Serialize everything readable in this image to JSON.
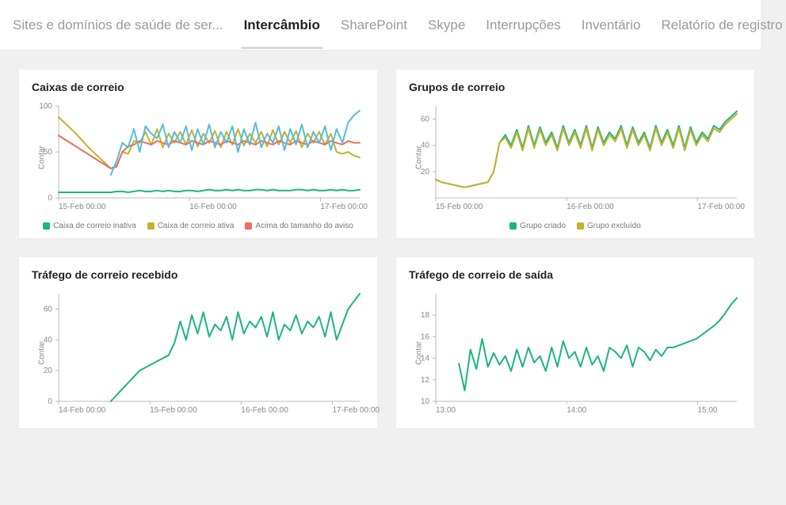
{
  "tabs": [
    {
      "label": "Sites e domínios de saúde de ser...",
      "active": false
    },
    {
      "label": "Intercâmbio",
      "active": true
    },
    {
      "label": "SharePoint",
      "active": false
    },
    {
      "label": "Skype",
      "active": false
    },
    {
      "label": "Interrupções",
      "active": false
    },
    {
      "label": "Inventário",
      "active": false
    },
    {
      "label": "Relatório de registro",
      "active": false
    }
  ],
  "colors": {
    "green": "#1bb580",
    "olive": "#c3b32a",
    "blue": "#52bde0",
    "red": "#f26b5e",
    "axis": "#bbbbbb",
    "axis_text": "#888888",
    "card_bg": "#ffffff",
    "page_bg": "#f0f0f0"
  },
  "chart_common": {
    "ylabel": "Contar",
    "label_fontsize": 10,
    "line_width": 2
  },
  "charts": {
    "mailboxes": {
      "title": "Caixas de correio",
      "type": "line",
      "ylim": [
        0,
        100
      ],
      "yticks": [
        0,
        50,
        100
      ],
      "xticks": [
        "15-Feb 00:00",
        "16-Feb 00:00",
        "17-Feb 00:00"
      ],
      "series": [
        {
          "name": "Caixa de correio inativa",
          "color": "#1bb580",
          "values": [
            6,
            6,
            6,
            6,
            6,
            6,
            6,
            6,
            6,
            6,
            7,
            7,
            6,
            7,
            8,
            7,
            7,
            8,
            7,
            8,
            7,
            7,
            8,
            8,
            7,
            8,
            9,
            8,
            8,
            9,
            8,
            9,
            8,
            8,
            9,
            9,
            8,
            9,
            8,
            8,
            8,
            9,
            9,
            8,
            9,
            8,
            8,
            9,
            8,
            9,
            8,
            8,
            9
          ]
        },
        {
          "name": "Caixa de correio ativa",
          "color": "#c3b32a",
          "values": [
            88,
            82,
            76,
            70,
            63,
            56,
            50,
            44,
            38,
            32,
            35,
            50,
            48,
            62,
            60,
            72,
            58,
            75,
            55,
            70,
            60,
            72,
            58,
            74,
            56,
            70,
            60,
            73,
            55,
            72,
            58,
            75,
            57,
            70,
            60,
            72,
            56,
            74,
            58,
            72,
            60,
            73,
            55,
            70,
            60,
            72,
            58,
            70,
            50,
            48,
            50,
            46,
            44
          ]
        },
        {
          "name": "Acima do tamanho do aviso",
          "color": "#f26b5e",
          "values": [
            68,
            64,
            60,
            56,
            52,
            48,
            44,
            40,
            36,
            32,
            34,
            50,
            56,
            58,
            62,
            60,
            58,
            62,
            60,
            58,
            62,
            60,
            58,
            62,
            60,
            58,
            62,
            60,
            58,
            62,
            60,
            58,
            62,
            60,
            58,
            62,
            60,
            58,
            62,
            60,
            58,
            62,
            60,
            58,
            62,
            60,
            58,
            62,
            60,
            58,
            62,
            60,
            60
          ]
        },
        {
          "name": "_blue",
          "color": "#52bde0",
          "hidden_legend": true,
          "values": [
            null,
            null,
            null,
            null,
            null,
            null,
            null,
            null,
            null,
            25,
            40,
            60,
            55,
            75,
            50,
            78,
            70,
            65,
            80,
            55,
            72,
            60,
            78,
            52,
            75,
            58,
            80,
            55,
            72,
            60,
            78,
            50,
            75,
            58,
            82,
            55,
            70,
            60,
            78,
            52,
            75,
            58,
            80,
            55,
            72,
            60,
            78,
            52,
            75,
            60,
            82,
            90,
            95
          ]
        }
      ]
    },
    "mailgroups": {
      "title": "Grupos de correio",
      "type": "line",
      "ylim": [
        0,
        70
      ],
      "yticks": [
        20,
        40,
        60
      ],
      "xticks": [
        "15-Feb 00:00",
        "16-Feb 00:00",
        "17-Feb 00:00"
      ],
      "series": [
        {
          "name": "Grupo criado",
          "color": "#1bb580",
          "values": [
            14,
            12,
            11,
            10,
            9,
            8,
            9,
            10,
            11,
            12,
            20,
            42,
            48,
            40,
            52,
            38,
            55,
            40,
            54,
            42,
            50,
            38,
            55,
            42,
            52,
            40,
            55,
            38,
            54,
            42,
            50,
            45,
            55,
            40,
            54,
            42,
            50,
            38,
            55,
            42,
            52,
            40,
            55,
            38,
            54,
            42,
            50,
            45,
            55,
            52,
            58,
            62,
            66
          ]
        },
        {
          "name": "Grupo excluído",
          "color": "#c3b32a",
          "values": [
            14,
            12,
            11,
            10,
            9,
            8,
            9,
            10,
            11,
            12,
            20,
            42,
            46,
            38,
            50,
            36,
            53,
            38,
            52,
            40,
            48,
            36,
            53,
            40,
            50,
            38,
            53,
            36,
            52,
            40,
            48,
            43,
            53,
            38,
            52,
            40,
            48,
            36,
            53,
            40,
            50,
            38,
            53,
            36,
            52,
            40,
            48,
            43,
            53,
            50,
            56,
            60,
            64
          ]
        }
      ]
    },
    "inbound": {
      "title": "Tráfego de correio recebido",
      "type": "line",
      "ylim": [
        0,
        70
      ],
      "yticks": [
        0,
        20,
        40,
        60
      ],
      "xticks": [
        "14-Feb 00:00",
        "15-Feb 00:00",
        "16-Feb 00:00",
        "17-Feb 00:00"
      ],
      "series": [
        {
          "name": "_inbound",
          "color": "#1bb580",
          "hidden_legend": true,
          "values": [
            null,
            null,
            null,
            null,
            null,
            null,
            null,
            null,
            null,
            0,
            4,
            8,
            12,
            16,
            20,
            22,
            24,
            26,
            28,
            30,
            38,
            52,
            40,
            56,
            44,
            58,
            42,
            50,
            46,
            55,
            40,
            58,
            44,
            52,
            48,
            55,
            42,
            58,
            40,
            50,
            46,
            56,
            44,
            52,
            48,
            55,
            42,
            58,
            40,
            50,
            60,
            65,
            70
          ]
        }
      ]
    },
    "outbound": {
      "title": "Tráfego de correio de saída",
      "type": "line",
      "ylim": [
        10,
        20
      ],
      "yticks": [
        10,
        12,
        14,
        16,
        18
      ],
      "xticks": [
        "13:00",
        "14:00",
        "15:00"
      ],
      "series": [
        {
          "name": "_outbound",
          "color": "#1bb580",
          "hidden_legend": true,
          "values": [
            null,
            null,
            null,
            null,
            13.5,
            11,
            14.8,
            13,
            15.8,
            13.2,
            14.5,
            13.4,
            14.2,
            12.8,
            14.8,
            13.2,
            15,
            13.6,
            14.2,
            12.8,
            15,
            13.2,
            15.6,
            14,
            14.6,
            13.2,
            15,
            13.4,
            14.2,
            12.8,
            15,
            14.6,
            14,
            15.2,
            13.2,
            15,
            14.6,
            13.8,
            14.8,
            14.2,
            15,
            15,
            15.2,
            15.4,
            15.6,
            15.8,
            16.2,
            16.6,
            17,
            17.5,
            18.2,
            19,
            19.6
          ]
        }
      ]
    }
  }
}
